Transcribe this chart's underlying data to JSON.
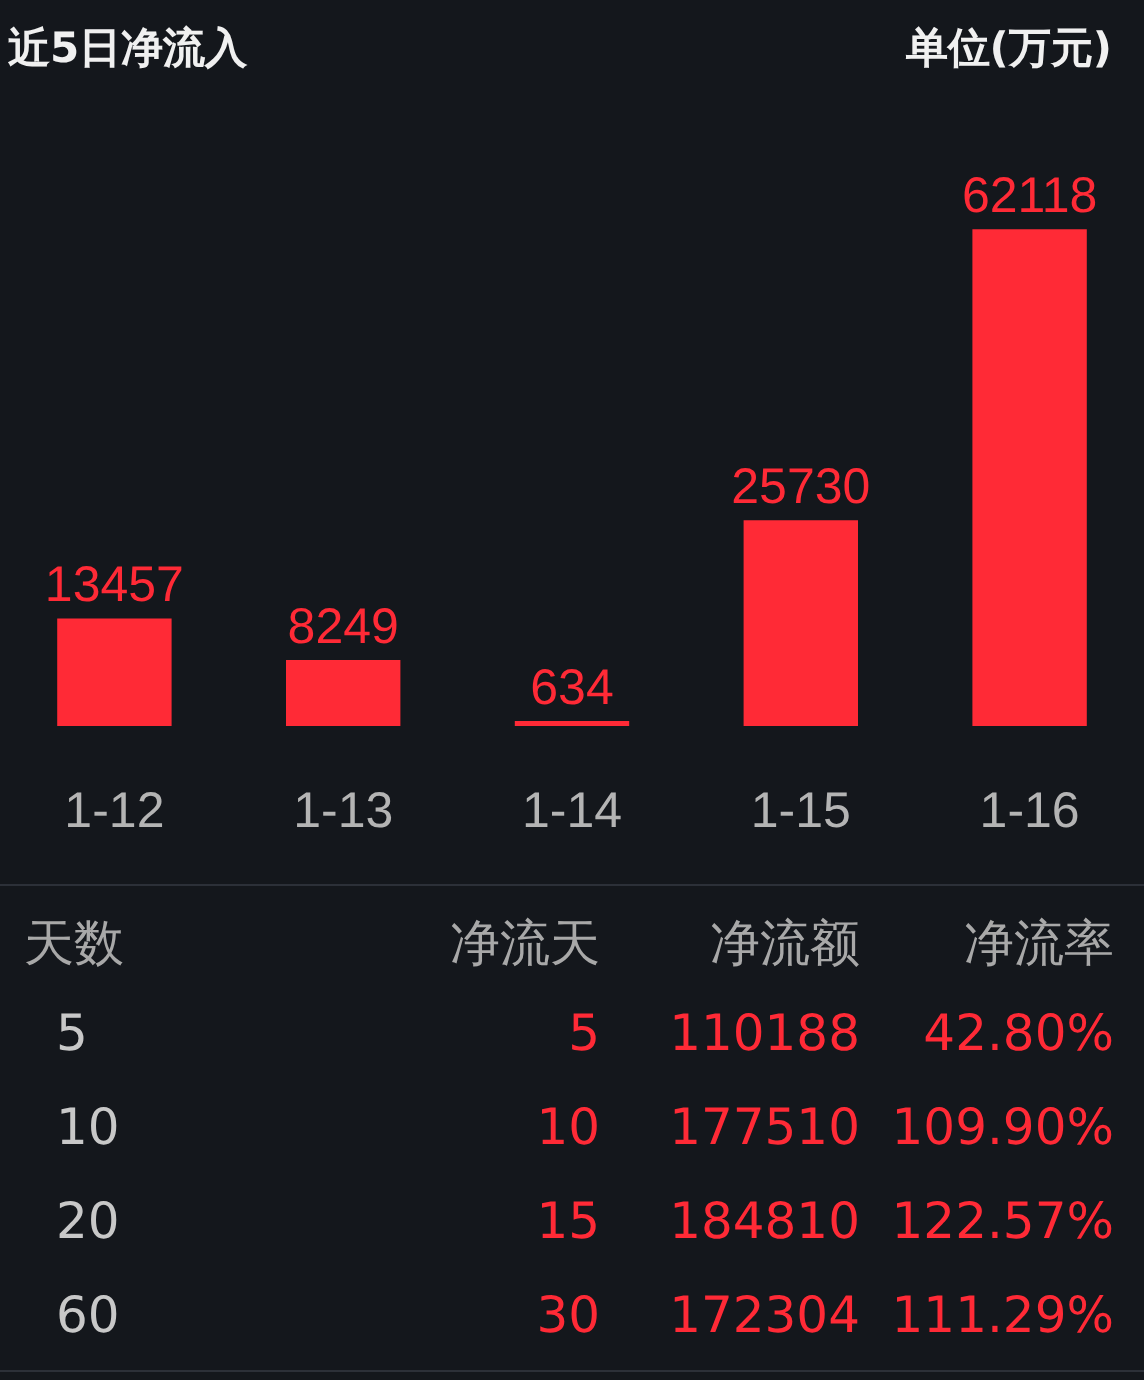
{
  "chart_data": [
    {
      "type": "bar",
      "title": "近5日净流入",
      "ylabel": "单位(万元)",
      "categories": [
        "1-12",
        "1-13",
        "1-14",
        "1-15",
        "1-16"
      ],
      "values": [
        13457,
        8249,
        634,
        25730,
        62118
      ],
      "color": "#ff2a36",
      "data_labels": true
    },
    {
      "type": "other",
      "categories": [
        "天数",
        "净流天",
        "净流额",
        "净流率"
      ],
      "y_categories": [
        "5",
        "10",
        "20",
        "60"
      ],
      "cell_labels": [
        [
          "5",
          "110188",
          "42.80%"
        ],
        [
          "10",
          "177510",
          "109.90%"
        ],
        [
          "15",
          "184810",
          "122.57%"
        ],
        [
          "30",
          "172304",
          "111.29%"
        ]
      ]
    }
  ]
}
